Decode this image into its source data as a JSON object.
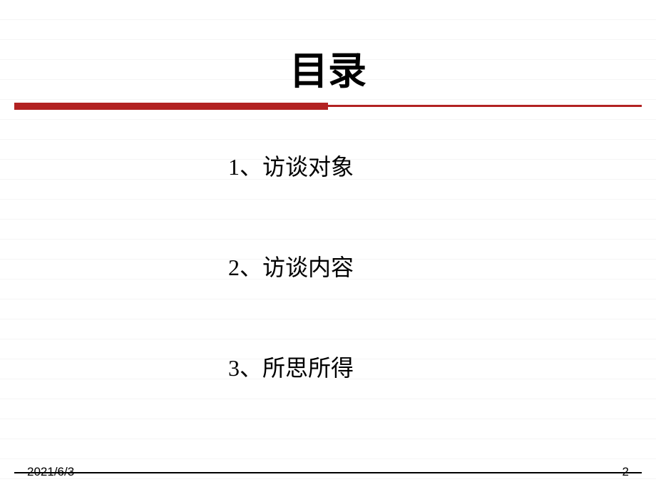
{
  "title": "目录",
  "items": [
    "1、访谈对象",
    "2、访谈内容",
    "3、所思所得"
  ],
  "footer": {
    "date": "2021/6/3",
    "page": "2"
  },
  "colors": {
    "divider": "#b22222",
    "text": "#000000",
    "background": "#ffffff"
  }
}
